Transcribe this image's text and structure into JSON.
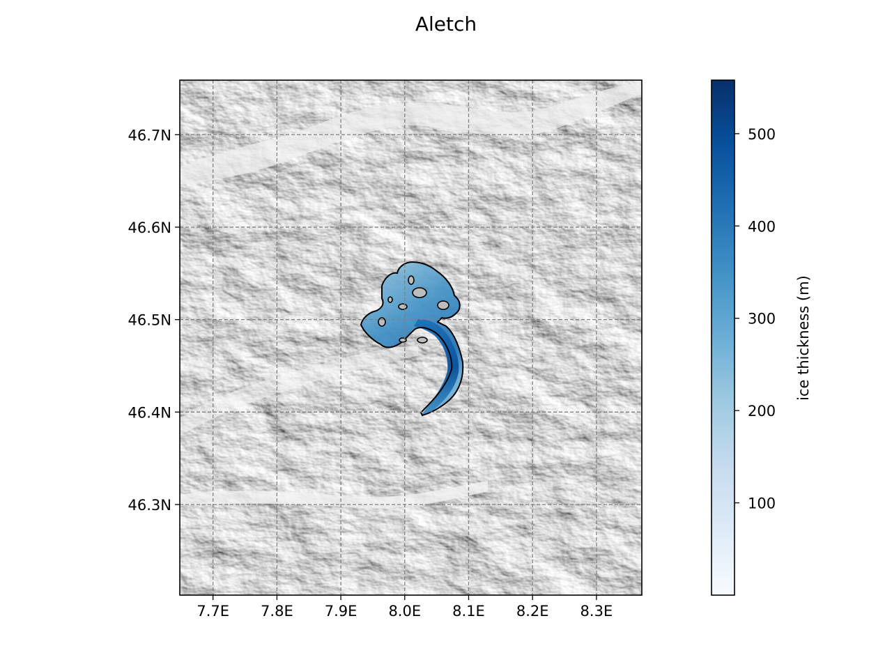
{
  "map": {
    "title": "Aletch",
    "lon_ticks": [
      {
        "value": 7.7,
        "label": "7.7E"
      },
      {
        "value": 7.8,
        "label": "7.8E"
      },
      {
        "value": 7.9,
        "label": "7.9E"
      },
      {
        "value": 8.0,
        "label": "8.0E"
      },
      {
        "value": 8.1,
        "label": "8.1E"
      },
      {
        "value": 8.2,
        "label": "8.2E"
      },
      {
        "value": 8.3,
        "label": "8.3E"
      }
    ],
    "lat_ticks": [
      {
        "value": 46.7,
        "label": "46.7N"
      },
      {
        "value": 46.6,
        "label": "46.6N"
      },
      {
        "value": 46.5,
        "label": "46.5N"
      },
      {
        "value": 46.4,
        "label": "46.4N"
      },
      {
        "value": 46.3,
        "label": "46.3N"
      }
    ],
    "lon_range": [
      7.648,
      8.371
    ],
    "lat_range": [
      46.202,
      46.759
    ],
    "grid": true,
    "grid_style": "dashed",
    "basemap": "hillshade",
    "glacier_outline_color": "#000000"
  },
  "colorbar": {
    "label": "ice thickness (m)",
    "ticks": [
      {
        "value": 100,
        "label": "100"
      },
      {
        "value": 200,
        "label": "200"
      },
      {
        "value": 300,
        "label": "300"
      },
      {
        "value": 400,
        "label": "400"
      },
      {
        "value": 500,
        "label": "500"
      }
    ],
    "range": [
      0,
      558
    ],
    "colormap": "Blues",
    "color_min": "#f7fbff",
    "color_max": "#08306b"
  },
  "chart_data": {
    "type": "heatmap",
    "title": "Aletch",
    "variable": "ice thickness (m)",
    "xlim": [
      7.648,
      8.371
    ],
    "ylim": [
      46.202,
      46.759
    ],
    "colorbar_range": [
      0,
      558
    ],
    "grid": true
  }
}
